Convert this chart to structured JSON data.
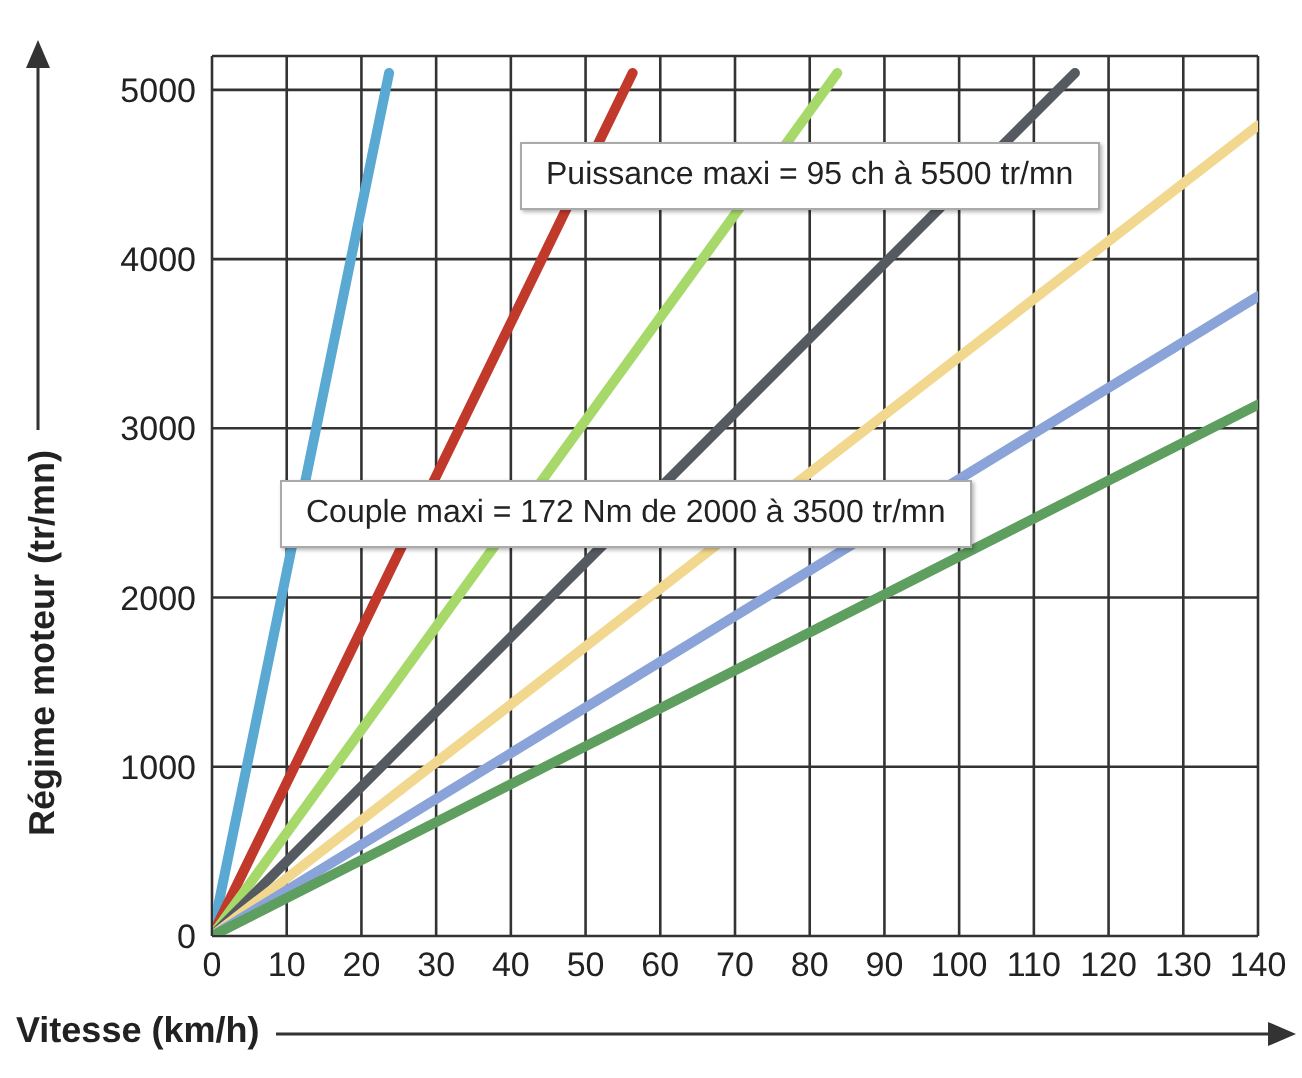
{
  "chart_data": {
    "type": "line",
    "xlabel": "Vitesse (km/h)",
    "ylabel": "Régime moteur (tr/mn)",
    "xlim": [
      0,
      140
    ],
    "xticks": [
      0,
      10,
      20,
      30,
      40,
      50,
      60,
      70,
      80,
      90,
      100,
      110,
      120,
      130,
      140
    ],
    "ylim": [
      0,
      5200
    ],
    "yticks": [
      0,
      1000,
      2000,
      3000,
      4000,
      5000
    ],
    "grid": true,
    "legend": false,
    "marker": "none",
    "line_style": "solid",
    "series": [
      {
        "color": "#5aa9d2",
        "x": [
          0,
          23.7
        ],
        "values": [
          0,
          5100
        ]
      },
      {
        "color": "#c0392b",
        "x": [
          0,
          56.3
        ],
        "values": [
          0,
          5100
        ]
      },
      {
        "color": "#a6d96a",
        "x": [
          0,
          83.7
        ],
        "values": [
          0,
          5100
        ]
      },
      {
        "color": "#555a60",
        "x": [
          0,
          115.5
        ],
        "values": [
          0,
          5100
        ]
      },
      {
        "color": "#f2d88e",
        "x": [
          0,
          140
        ],
        "values": [
          0,
          4790
        ]
      },
      {
        "color": "#8aa3d8",
        "x": [
          0,
          140
        ],
        "values": [
          0,
          3780
        ]
      },
      {
        "color": "#5e9e5e",
        "x": [
          0,
          140
        ],
        "values": [
          0,
          3140
        ]
      }
    ],
    "annotations": [
      "Puissance maxi = 95 ch à 5500 tr/mn",
      "Couple maxi = 172 Nm de 2000 à 3500 tr/mn"
    ]
  }
}
